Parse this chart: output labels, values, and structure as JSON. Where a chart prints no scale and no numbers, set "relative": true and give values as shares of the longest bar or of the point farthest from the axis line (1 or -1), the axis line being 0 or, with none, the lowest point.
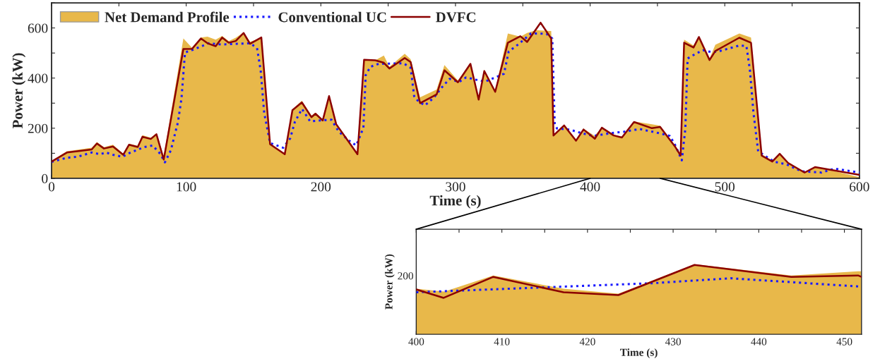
{
  "chart_data": [
    {
      "type": "area",
      "xlabel": "Time (s)",
      "ylabel": "Power (kW)",
      "xlim": [
        0,
        600
      ],
      "ylim": [
        0,
        700
      ],
      "xticks": [
        0,
        {
          "value": 50,
          "label": null
        },
        100,
        {
          "value": 150,
          "label": null
        },
        200,
        {
          "value": 250,
          "label": null
        },
        300,
        {
          "value": 350,
          "label": null
        },
        400,
        {
          "value": 450,
          "label": null
        },
        500,
        {
          "value": 550,
          "label": null
        },
        600
      ],
      "yticks": [
        0,
        {
          "value": 100,
          "label": null
        },
        200,
        {
          "value": 300,
          "label": null
        },
        400,
        {
          "value": 500,
          "label": null
        },
        600,
        {
          "value": 700,
          "label": null
        }
      ],
      "legend": "top left",
      "grid": false,
      "series": [
        {
          "name": "Net Demand Profile",
          "color": "#e8b84a",
          "x": [
            0,
            11.4,
            29.8,
            33.7,
            38.9,
            45.6,
            53.2,
            57.5,
            64,
            67.5,
            73.7,
            77.9,
            83.3,
            97.9,
            104.4,
            110.9,
            115.8,
            121.9,
            126.7,
            131.6,
            136.8,
            142.6,
            147.4,
            155.8,
            162.3,
            173.2,
            178.9,
            185.9,
            193,
            196,
            201.4,
            206.1,
            211.4,
            227.2,
            232.1,
            240.4,
            246.8,
            250.9,
            262.3,
            266.7,
            273.7,
            286,
            291.8,
            301.8,
            311.1,
            317.2,
            321.4,
            329.5,
            338.9,
            348.2,
            353.2,
            360,
            371.1,
            372.8,
            380.7,
            389.5,
            395.1,
            403.3,
            409,
            417.2,
            423.6,
            432.6,
            445.9,
            452,
            463.4,
            467.2,
            469.8,
            476.8,
            480.8,
            488.7,
            493,
            510.8,
            519.5,
            527.4,
            535.3,
            540.8,
            547.1,
            559.3,
            567.2,
            600
          ],
          "values": [
            70,
            108,
            122,
            145,
            124,
            134,
            98,
            138,
            130,
            172,
            162,
            180,
            89,
            558,
            520,
            562,
            565,
            553,
            568,
            548,
            561,
            582,
            545,
            560,
            140,
            96,
            275,
            310,
            250,
            262,
            236,
            330,
            218,
            98,
            475,
            471,
            490,
            445,
            497,
            475,
            323,
            354,
            452,
            390,
            460,
            320,
            434,
            350,
            578,
            565,
            580,
            591,
            588,
            175,
            212,
            155,
            198,
            170,
            204,
            175,
            165,
            227,
            216,
            210,
            128,
            95,
            553,
            530,
            565,
            478,
            533,
            578,
            562,
            95,
            70,
            100,
            65,
            25,
            47,
            5
          ]
        },
        {
          "name": "Conventional UC",
          "type": "line",
          "line_style": "dotted",
          "color": "#1a1aff",
          "x": [
            0,
            11.4,
            19.3,
            29.8,
            36,
            40.4,
            45.6,
            52.6,
            57.9,
            68.4,
            75.1,
            80.7,
            84.2,
            88.6,
            93.9,
            96.5,
            99.1,
            105.3,
            110.5,
            116.7,
            126.3,
            147.4,
            152.6,
            155.3,
            157.9,
            162.3,
            172,
            177.2,
            180.7,
            186,
            192.1,
            201.8,
            207.9,
            213.2,
            221,
            226.3,
            231.6,
            233.3,
            236.8,
            243,
            261.4,
            266.7,
            269.3,
            271,
            277.2,
            284.2,
            289.5,
            295.6,
            302.6,
            307.9,
            314.9,
            321.9,
            330.7,
            336,
            339.5,
            346.5,
            356.1,
            367.5,
            371.9,
            373.7,
            375.4,
            385.1,
            393.9,
            402.6,
            414.8,
            425.3,
            436.6,
            451.5,
            459.3,
            463.7,
            468.1,
            470.7,
            472.4,
            477.7,
            483.8,
            489.9,
            495.1,
            510.8,
            516.1,
            518.7,
            521.3,
            524.8,
            530,
            537,
            545.7,
            557.1,
            571.9,
            581.5,
            600
          ],
          "values": [
            66,
            82,
            86,
            103,
            96,
            103,
            94,
            86,
            101,
            124,
            131,
            98,
            64,
            112,
            225,
            319,
            502,
            514,
            525,
            539,
            534,
            539,
            520,
            431,
            262,
            141,
            122,
            159,
            225,
            277,
            227,
            232,
            234,
            187,
            150,
            131,
            202,
            412,
            445,
            457,
            459,
            441,
            328,
            314,
            291,
            323,
            361,
            397,
            384,
            403,
            394,
            386,
            405,
            417,
            506,
            534,
            578,
            577,
            558,
            216,
            199,
            194,
            180,
            169,
            180,
            186,
            197,
            180,
            169,
            127,
            72,
            197,
            478,
            495,
            511,
            504,
            506,
            530,
            528,
            431,
            262,
            108,
            89,
            66,
            56,
            28,
            23,
            39,
            23
          ]
        },
        {
          "name": "DVFC",
          "type": "line",
          "line_style": "solid",
          "color": "#8b0000",
          "x": [
            0,
            11.4,
            29.8,
            33.7,
            38.9,
            45.6,
            53.2,
            57.5,
            64,
            67.5,
            73.7,
            77.9,
            83.3,
            97.9,
            104.4,
            110.9,
            115.8,
            121.9,
            126.7,
            131.6,
            136.8,
            142.6,
            147.4,
            155.8,
            162.3,
            173.2,
            178.9,
            185.9,
            193,
            196,
            201.4,
            206.1,
            211.4,
            227.2,
            232.1,
            240.4,
            246.8,
            250.9,
            262.3,
            266.7,
            273.7,
            286,
            291.8,
            301.8,
            311.1,
            317.2,
            321.4,
            329.5,
            338.9,
            348.2,
            353.2,
            363.2,
            371.1,
            372.8,
            380.7,
            389.5,
            395.1,
            403.5,
            408.7,
            417.5,
            423.6,
            432.6,
            445.9,
            452,
            463.4,
            467.2,
            469.8,
            476.8,
            480.8,
            488.7,
            493,
            510.8,
            519.5,
            527.4,
            535.3,
            540.8,
            547.1,
            559.3,
            567.2,
            600
          ],
          "values": [
            67,
            103,
            115,
            139,
            119,
            127,
            94,
            134,
            125,
            166,
            157,
            176,
            75,
            516,
            517,
            558,
            539,
            527,
            562,
            541,
            548,
            580,
            537,
            562,
            136,
            96,
            272,
            303,
            244,
            258,
            231,
            328,
            216,
            96,
            473,
            471,
            461,
            438,
            480,
            464,
            300,
            335,
            431,
            383,
            457,
            314,
            428,
            345,
            541,
            567,
            544,
            621,
            558,
            171,
            211,
            150,
            195,
            158,
            202,
            171,
            163,
            225,
            200,
            205,
            124,
            91,
            541,
            522,
            564,
            472,
            508,
            561,
            541,
            91,
            67,
            98,
            61,
            23,
            45,
            14
          ]
        }
      ]
    },
    {
      "type": "area",
      "xlabel": "Time (s)",
      "ylabel": "Power (kW)",
      "xlim": [
        400,
        452
      ],
      "xticks": [
        400,
        {
          "value": 405,
          "label": null
        },
        410,
        {
          "value": 415,
          "label": null
        },
        420,
        {
          "value": 425,
          "label": null
        },
        430,
        {
          "value": 435,
          "label": null
        },
        440,
        {
          "value": 445,
          "label": null
        },
        450
      ],
      "relative": true,
      "annotations": [
        "200"
      ],
      "grid": false,
      "series": [
        {
          "color": "#e8b84a",
          "x": [
            400,
            403.3,
            409,
            417.2,
            423.6,
            432.5,
            443.8,
            451.6,
            452
          ],
          "values": [
            0.65,
            0.61,
            0.84,
            0.65,
            0.58,
            1,
            0.84,
            0.9,
            0.9
          ]
        },
        {
          "type": "line",
          "line_style": "dotted",
          "color": "#1a1aff",
          "x": [
            400,
            427.7,
            436.7,
            452
          ],
          "values": [
            0.6,
            0.73,
            0.8,
            0.68
          ]
        },
        {
          "type": "line",
          "line_style": "solid",
          "color": "#8b0000",
          "x": [
            400,
            403.2,
            409,
            417.2,
            423.6,
            432.5,
            443.8,
            451.6,
            452
          ],
          "values": [
            0.64,
            0.52,
            0.82,
            0.6,
            0.56,
            0.99,
            0.82,
            0.84,
            0.82
          ]
        }
      ]
    }
  ]
}
